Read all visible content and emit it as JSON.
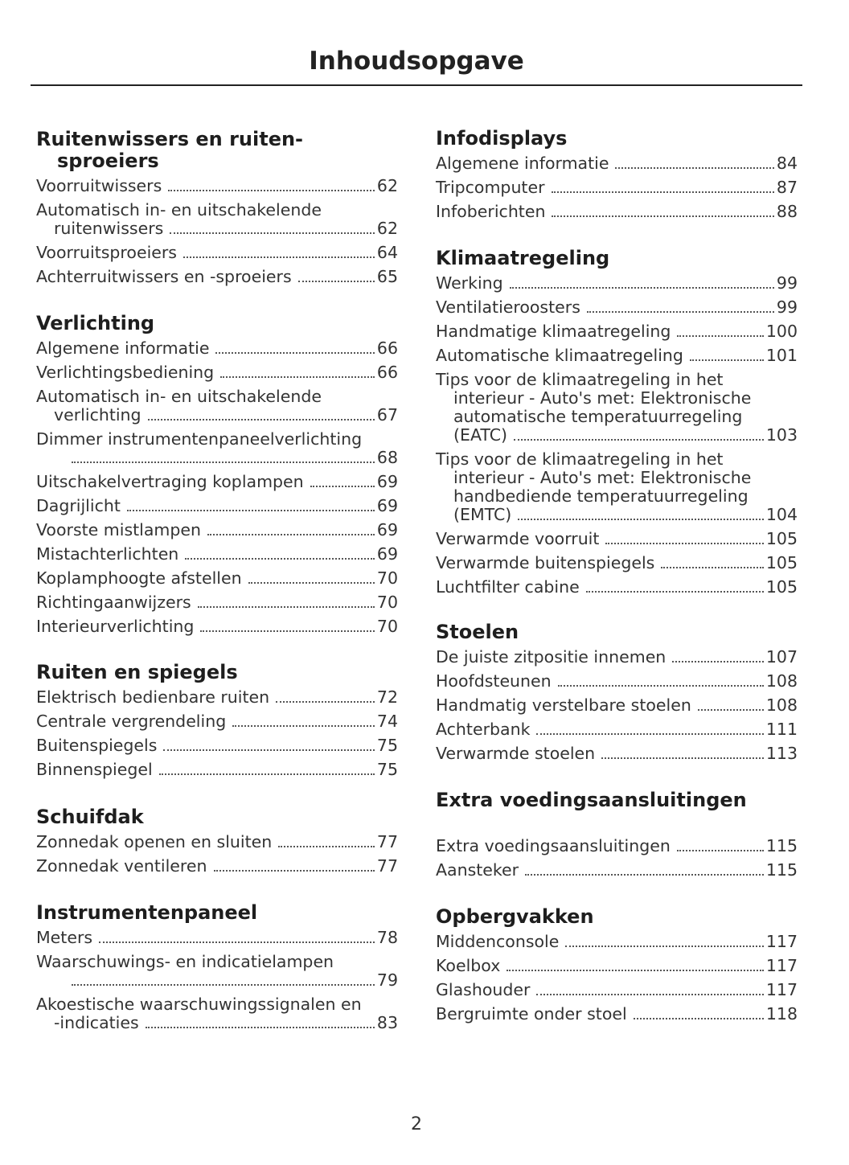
{
  "title": "Inhoudsopgave",
  "page_number": "2",
  "columns": [
    [
      {
        "heading": [
          "Ruitenwissers en ruiten-",
          "sproeiers"
        ],
        "entries": [
          {
            "lines": [
              "Voorruitwissers"
            ],
            "page": "62"
          },
          {
            "lines": [
              "Automatisch in- en uitschakelende",
              "ruitenwissers"
            ],
            "page": "62"
          },
          {
            "lines": [
              "Voorruitsproeiers"
            ],
            "page": "64"
          },
          {
            "lines": [
              "Achterruitwissers en -sproeiers"
            ],
            "page": "65"
          }
        ]
      },
      {
        "heading": [
          "Verlichting"
        ],
        "entries": [
          {
            "lines": [
              "Algemene informatie"
            ],
            "page": "66"
          },
          {
            "lines": [
              "Verlichtingsbediening"
            ],
            "page": "66"
          },
          {
            "lines": [
              "Automatisch in- en uitschakelende",
              "verlichting"
            ],
            "page": "67"
          },
          {
            "lines": [
              "Dimmer instrumentenpaneelverlichting",
              ""
            ],
            "page": "68"
          },
          {
            "lines": [
              "Uitschakelvertraging koplampen"
            ],
            "page": "69"
          },
          {
            "lines": [
              "Dagrijlicht"
            ],
            "page": "69"
          },
          {
            "lines": [
              "Voorste mistlampen"
            ],
            "page": "69"
          },
          {
            "lines": [
              "Mistachterlichten"
            ],
            "page": "69"
          },
          {
            "lines": [
              "Koplamphoogte afstellen"
            ],
            "page": "70"
          },
          {
            "lines": [
              "Richtingaanwijzers"
            ],
            "page": "70"
          },
          {
            "lines": [
              "Interieurverlichting"
            ],
            "page": "70"
          }
        ]
      },
      {
        "heading": [
          "Ruiten en spiegels"
        ],
        "entries": [
          {
            "lines": [
              "Elektrisch bedienbare ruiten"
            ],
            "page": "72"
          },
          {
            "lines": [
              "Centrale vergrendeling"
            ],
            "page": "74"
          },
          {
            "lines": [
              "Buitenspiegels"
            ],
            "page": "75"
          },
          {
            "lines": [
              "Binnenspiegel"
            ],
            "page": "75"
          }
        ]
      },
      {
        "heading": [
          "Schuifdak"
        ],
        "entries": [
          {
            "lines": [
              "Zonnedak openen en sluiten"
            ],
            "page": "77"
          },
          {
            "lines": [
              "Zonnedak ventileren"
            ],
            "page": "77"
          }
        ]
      },
      {
        "heading": [
          "Instrumentenpaneel"
        ],
        "entries": [
          {
            "lines": [
              "Meters"
            ],
            "page": "78"
          },
          {
            "lines": [
              "Waarschuwings- en indicatielampen",
              ""
            ],
            "page": "79"
          },
          {
            "lines": [
              "Akoestische waarschuwingssignalen en",
              "-indicaties"
            ],
            "page": "83"
          }
        ]
      }
    ],
    [
      {
        "heading": [
          "Infodisplays"
        ],
        "entries": [
          {
            "lines": [
              "Algemene informatie"
            ],
            "page": "84"
          },
          {
            "lines": [
              "Tripcomputer"
            ],
            "page": "87"
          },
          {
            "lines": [
              "Infoberichten"
            ],
            "page": "88"
          }
        ]
      },
      {
        "heading": [
          "Klimaatregeling"
        ],
        "entries": [
          {
            "lines": [
              "Werking"
            ],
            "page": "99"
          },
          {
            "lines": [
              "Ventilatieroosters"
            ],
            "page": "99"
          },
          {
            "lines": [
              "Handmatige klimaatregeling"
            ],
            "page": "100"
          },
          {
            "lines": [
              "Automatische klimaatregeling"
            ],
            "page": "101"
          },
          {
            "lines": [
              "Tips voor de klimaatregeling in het",
              "interieur - Auto's met: Elektronische",
              "automatische temperatuurregeling",
              "(EATC)"
            ],
            "page": "103"
          },
          {
            "lines": [
              "Tips voor de klimaatregeling in het",
              "interieur - Auto's met: Elektronische",
              "handbediende temperatuurregeling",
              "(EMTC)"
            ],
            "page": "104"
          },
          {
            "lines": [
              "Verwarmde voorruit"
            ],
            "page": "105"
          },
          {
            "lines": [
              "Verwarmde buitenspiegels"
            ],
            "page": "105"
          },
          {
            "lines": [
              "Luchtfilter cabine"
            ],
            "page": "105"
          }
        ]
      },
      {
        "heading": [
          "Stoelen"
        ],
        "entries": [
          {
            "lines": [
              "De juiste zitpositie innemen"
            ],
            "page": "107"
          },
          {
            "lines": [
              "Hoofdsteunen"
            ],
            "page": "108"
          },
          {
            "lines": [
              "Handmatig verstelbare stoelen"
            ],
            "page": "108"
          },
          {
            "lines": [
              "Achterbank"
            ],
            "page": "111"
          },
          {
            "lines": [
              "Verwarmde stoelen"
            ],
            "page": "113"
          }
        ]
      },
      {
        "heading": [
          "Extra voedingsaansluitingen"
        ],
        "gap": true,
        "entries": [
          {
            "lines": [
              "Extra voedingsaansluitingen"
            ],
            "page": "115"
          },
          {
            "lines": [
              "Aansteker"
            ],
            "page": "115"
          }
        ]
      },
      {
        "heading": [
          "Opbergvakken"
        ],
        "entries": [
          {
            "lines": [
              "Middenconsole"
            ],
            "page": "117"
          },
          {
            "lines": [
              "Koelbox"
            ],
            "page": "117"
          },
          {
            "lines": [
              "Glashouder"
            ],
            "page": "117"
          },
          {
            "lines": [
              "Bergruimte onder stoel"
            ],
            "page": "118"
          }
        ]
      }
    ]
  ]
}
